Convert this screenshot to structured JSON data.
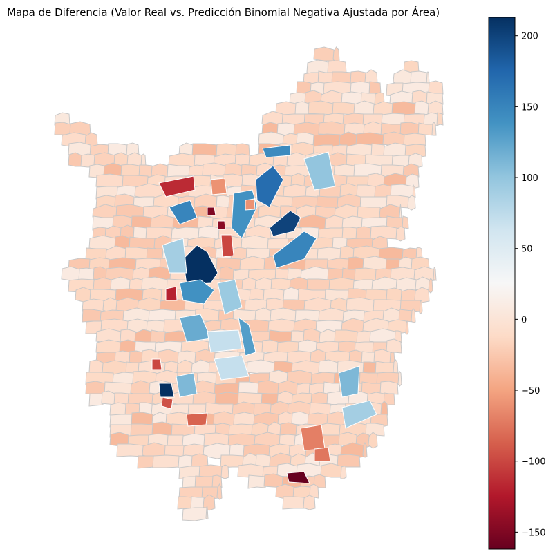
{
  "title": "Mapa de Diferencia (Valor Real vs. Predicción Binomial Negativa Ajustada por Área)",
  "colorbar": {
    "colormap": "RdBu",
    "min": -162,
    "max": 213,
    "ticks": [
      {
        "value": 200,
        "label": "200"
      },
      {
        "value": 150,
        "label": "150"
      },
      {
        "value": 100,
        "label": "100"
      },
      {
        "value": 50,
        "label": "50"
      },
      {
        "value": 0,
        "label": "0"
      },
      {
        "value": -50,
        "label": "−50"
      },
      {
        "value": -100,
        "label": "−100"
      },
      {
        "value": -150,
        "label": "−150"
      }
    ],
    "stops": [
      "#67001f",
      "#b2182b",
      "#d6604d",
      "#f4a582",
      "#fddbc7",
      "#f7f7f7",
      "#d1e5f0",
      "#92c5de",
      "#4393c3",
      "#2166ac",
      "#053061"
    ]
  },
  "map": {
    "boundary_color": "#c8c8c8",
    "region_values": [
      -10,
      -15,
      -25,
      -5,
      5,
      -10,
      -20,
      -35,
      -12,
      0,
      8,
      -18
    ]
  }
}
